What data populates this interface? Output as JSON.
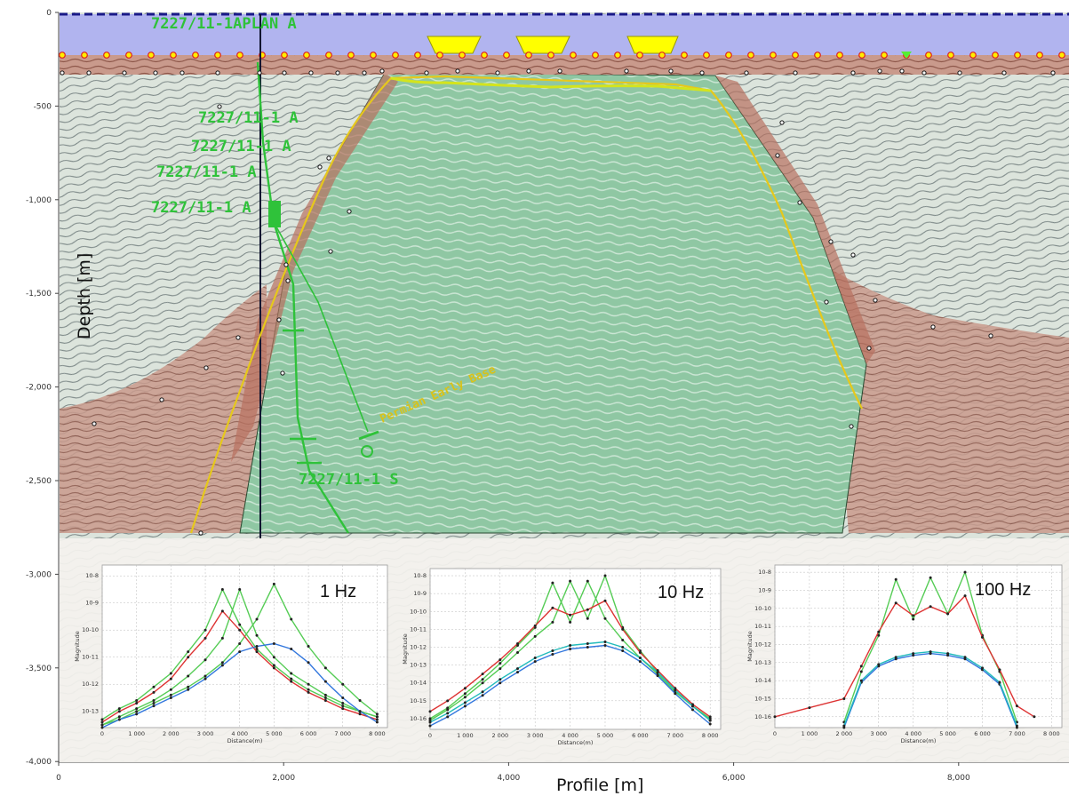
{
  "main": {
    "x_label": "Profile [m]",
    "y_label": "Depth [m]",
    "x_ticks": [
      "0",
      "2,000",
      "4,000",
      "6,000",
      "8,000"
    ],
    "y_ticks": [
      "0",
      "-500",
      "-1,000",
      "-1,500",
      "-2,000",
      "-2,500",
      "-3,000",
      "-3,500",
      "-4,000"
    ],
    "well_labels": [
      "7227/11-1APLAN A",
      "7227/11-1 A",
      "7227/11-1 A",
      "7227/11-1 A",
      "7227/11-1 A",
      "7227/11-1 S"
    ],
    "horizon_label": "Permian Early Base",
    "colors": {
      "water": "#b1b4ef",
      "dome": "#8bc6a0",
      "sediment": "#b97a6a",
      "well": "#2fc23a",
      "horizon": "#d8c21a"
    }
  },
  "chart_data": [
    {
      "type": "line",
      "title": "1 Hz",
      "xlabel": "Distance(m)",
      "ylabel": "Magnitude",
      "xticks": [
        "0",
        "1 000",
        "2 000",
        "3 000",
        "4 000",
        "5 000",
        "6 000",
        "7 000",
        "8 000"
      ],
      "yticks": [
        "10^-8",
        "10^-9",
        "10^-10",
        "10^-11",
        "10^-12",
        "10^-13"
      ],
      "xlim": [
        0,
        8300
      ],
      "ylim": [
        -13.6,
        -7.6
      ],
      "x": [
        0,
        500,
        1000,
        1500,
        2000,
        2500,
        3000,
        3500,
        4000,
        4500,
        5000,
        5500,
        6000,
        6500,
        7000,
        7500,
        8000
      ],
      "series": [
        {
          "color": "#55cc55",
          "values": [
            -13.3,
            -12.9,
            -12.6,
            -12.1,
            -11.6,
            -10.8,
            -10.0,
            -8.5,
            -9.8,
            -10.7,
            -11.3,
            -11.8,
            -12.2,
            -12.5,
            -12.8,
            -13.0,
            -13.2
          ]
        },
        {
          "color": "#55cc55",
          "values": [
            -13.5,
            -13.2,
            -12.9,
            -12.6,
            -12.2,
            -11.7,
            -11.1,
            -10.3,
            -8.5,
            -10.2,
            -11.0,
            -11.6,
            -12.0,
            -12.4,
            -12.7,
            -13.0,
            -13.2
          ]
        },
        {
          "color": "#55cc55",
          "values": [
            -13.5,
            -13.3,
            -13.0,
            -12.7,
            -12.4,
            -12.1,
            -11.7,
            -11.2,
            -10.5,
            -9.6,
            -8.3,
            -9.6,
            -10.6,
            -11.4,
            -12.0,
            -12.6,
            -13.1
          ]
        },
        {
          "color": "#dd3333",
          "values": [
            -13.4,
            -13.0,
            -12.7,
            -12.3,
            -11.8,
            -11.0,
            -10.3,
            -9.3,
            -10.0,
            -10.8,
            -11.4,
            -11.9,
            -12.3,
            -12.6,
            -12.9,
            -13.1,
            -13.3
          ]
        },
        {
          "color": "#3377dd",
          "values": [
            -13.6,
            -13.3,
            -13.1,
            -12.8,
            -12.5,
            -12.2,
            -11.8,
            -11.3,
            -10.8,
            -10.6,
            -10.5,
            -10.7,
            -11.2,
            -11.9,
            -12.5,
            -13.0,
            -13.4
          ]
        }
      ]
    },
    {
      "type": "line",
      "title": "10 Hz",
      "xlabel": "Distance(m)",
      "ylabel": "Magnitude",
      "xticks": [
        "0",
        "1 000",
        "2 000",
        "3 000",
        "4 000",
        "5 000",
        "6 000",
        "7 000",
        "8 000"
      ],
      "yticks": [
        "10^-8",
        "10^-9",
        "10^-10",
        "10^-11",
        "10^-12",
        "10^-13",
        "10^-14",
        "10^-15",
        "10^-16"
      ],
      "xlim": [
        0,
        8300
      ],
      "ylim": [
        -16.6,
        -7.6
      ],
      "x": [
        0,
        500,
        1000,
        1500,
        2000,
        2500,
        3000,
        3500,
        4000,
        4500,
        5000,
        5500,
        6000,
        6500,
        7000,
        7500,
        8000
      ],
      "series": [
        {
          "color": "#55cc55",
          "values": [
            -16.0,
            -15.4,
            -14.6,
            -13.8,
            -12.9,
            -11.9,
            -10.9,
            -8.4,
            -10.6,
            -8.3,
            -10.4,
            -11.6,
            -12.6,
            -13.5,
            -14.5,
            -15.3,
            -16.0
          ]
        },
        {
          "color": "#55cc55",
          "values": [
            -16.1,
            -15.5,
            -14.8,
            -14.0,
            -13.2,
            -12.3,
            -11.4,
            -10.6,
            -8.3,
            -10.4,
            -8.0,
            -10.9,
            -12.2,
            -13.4,
            -14.4,
            -15.3,
            -16.1
          ]
        },
        {
          "color": "#dd3333",
          "values": [
            -15.6,
            -15.0,
            -14.3,
            -13.5,
            -12.7,
            -11.8,
            -10.8,
            -9.8,
            -10.2,
            -9.9,
            -9.4,
            -11.0,
            -12.3,
            -13.3,
            -14.3,
            -15.2,
            -15.9
          ]
        },
        {
          "color": "#3377dd",
          "values": [
            -16.4,
            -15.9,
            -15.3,
            -14.7,
            -14.0,
            -13.4,
            -12.8,
            -12.4,
            -12.1,
            -12.0,
            -11.9,
            -12.2,
            -12.8,
            -13.6,
            -14.6,
            -15.5,
            -16.3
          ]
        },
        {
          "color": "#22bbbb",
          "values": [
            -16.2,
            -15.7,
            -15.1,
            -14.5,
            -13.8,
            -13.2,
            -12.6,
            -12.2,
            -11.9,
            -11.8,
            -11.7,
            -12.0,
            -12.6,
            -13.4,
            -14.4,
            -15.3,
            -16.1
          ]
        }
      ]
    },
    {
      "type": "line",
      "title": "100 Hz",
      "xlabel": "Distance(m)",
      "ylabel": "Magnitude",
      "xticks": [
        "0",
        "1 000",
        "2 000",
        "3 000",
        "4 000",
        "5 000",
        "6 000",
        "7 000",
        "8 000"
      ],
      "yticks": [
        "10^-8",
        "10^-9",
        "10^-10",
        "10^-11",
        "10^-12",
        "10^-13",
        "10^-14",
        "10^-15",
        "10^-16"
      ],
      "xlim": [
        0,
        8300
      ],
      "ylim": [
        -16.6,
        -7.6
      ],
      "x": [
        0,
        1000,
        2000,
        2500,
        3000,
        3500,
        4000,
        4500,
        5000,
        5500,
        6000,
        6500,
        7000,
        7500
      ],
      "series": [
        {
          "color": "#55cc55",
          "values": [
            null,
            null,
            -16.3,
            -13.5,
            -11.5,
            -8.4,
            -10.6,
            -8.3,
            -10.3,
            -8.0,
            -11.5,
            -13.5,
            -16.3,
            null
          ]
        },
        {
          "color": "#dd3333",
          "values": [
            -16.0,
            -15.5,
            -15.0,
            -13.2,
            -11.3,
            -9.7,
            -10.4,
            -9.9,
            -10.3,
            -9.3,
            -11.6,
            -13.4,
            -15.4,
            -16.0
          ]
        },
        {
          "color": "#3377dd",
          "values": [
            null,
            null,
            -16.6,
            -14.1,
            -13.2,
            -12.8,
            -12.6,
            -12.5,
            -12.6,
            -12.8,
            -13.4,
            -14.2,
            -16.6,
            null
          ]
        },
        {
          "color": "#22bbbb",
          "values": [
            null,
            null,
            -16.5,
            -14.0,
            -13.1,
            -12.7,
            -12.5,
            -12.4,
            -12.5,
            -12.7,
            -13.3,
            -14.1,
            -16.5,
            null
          ]
        }
      ]
    }
  ]
}
